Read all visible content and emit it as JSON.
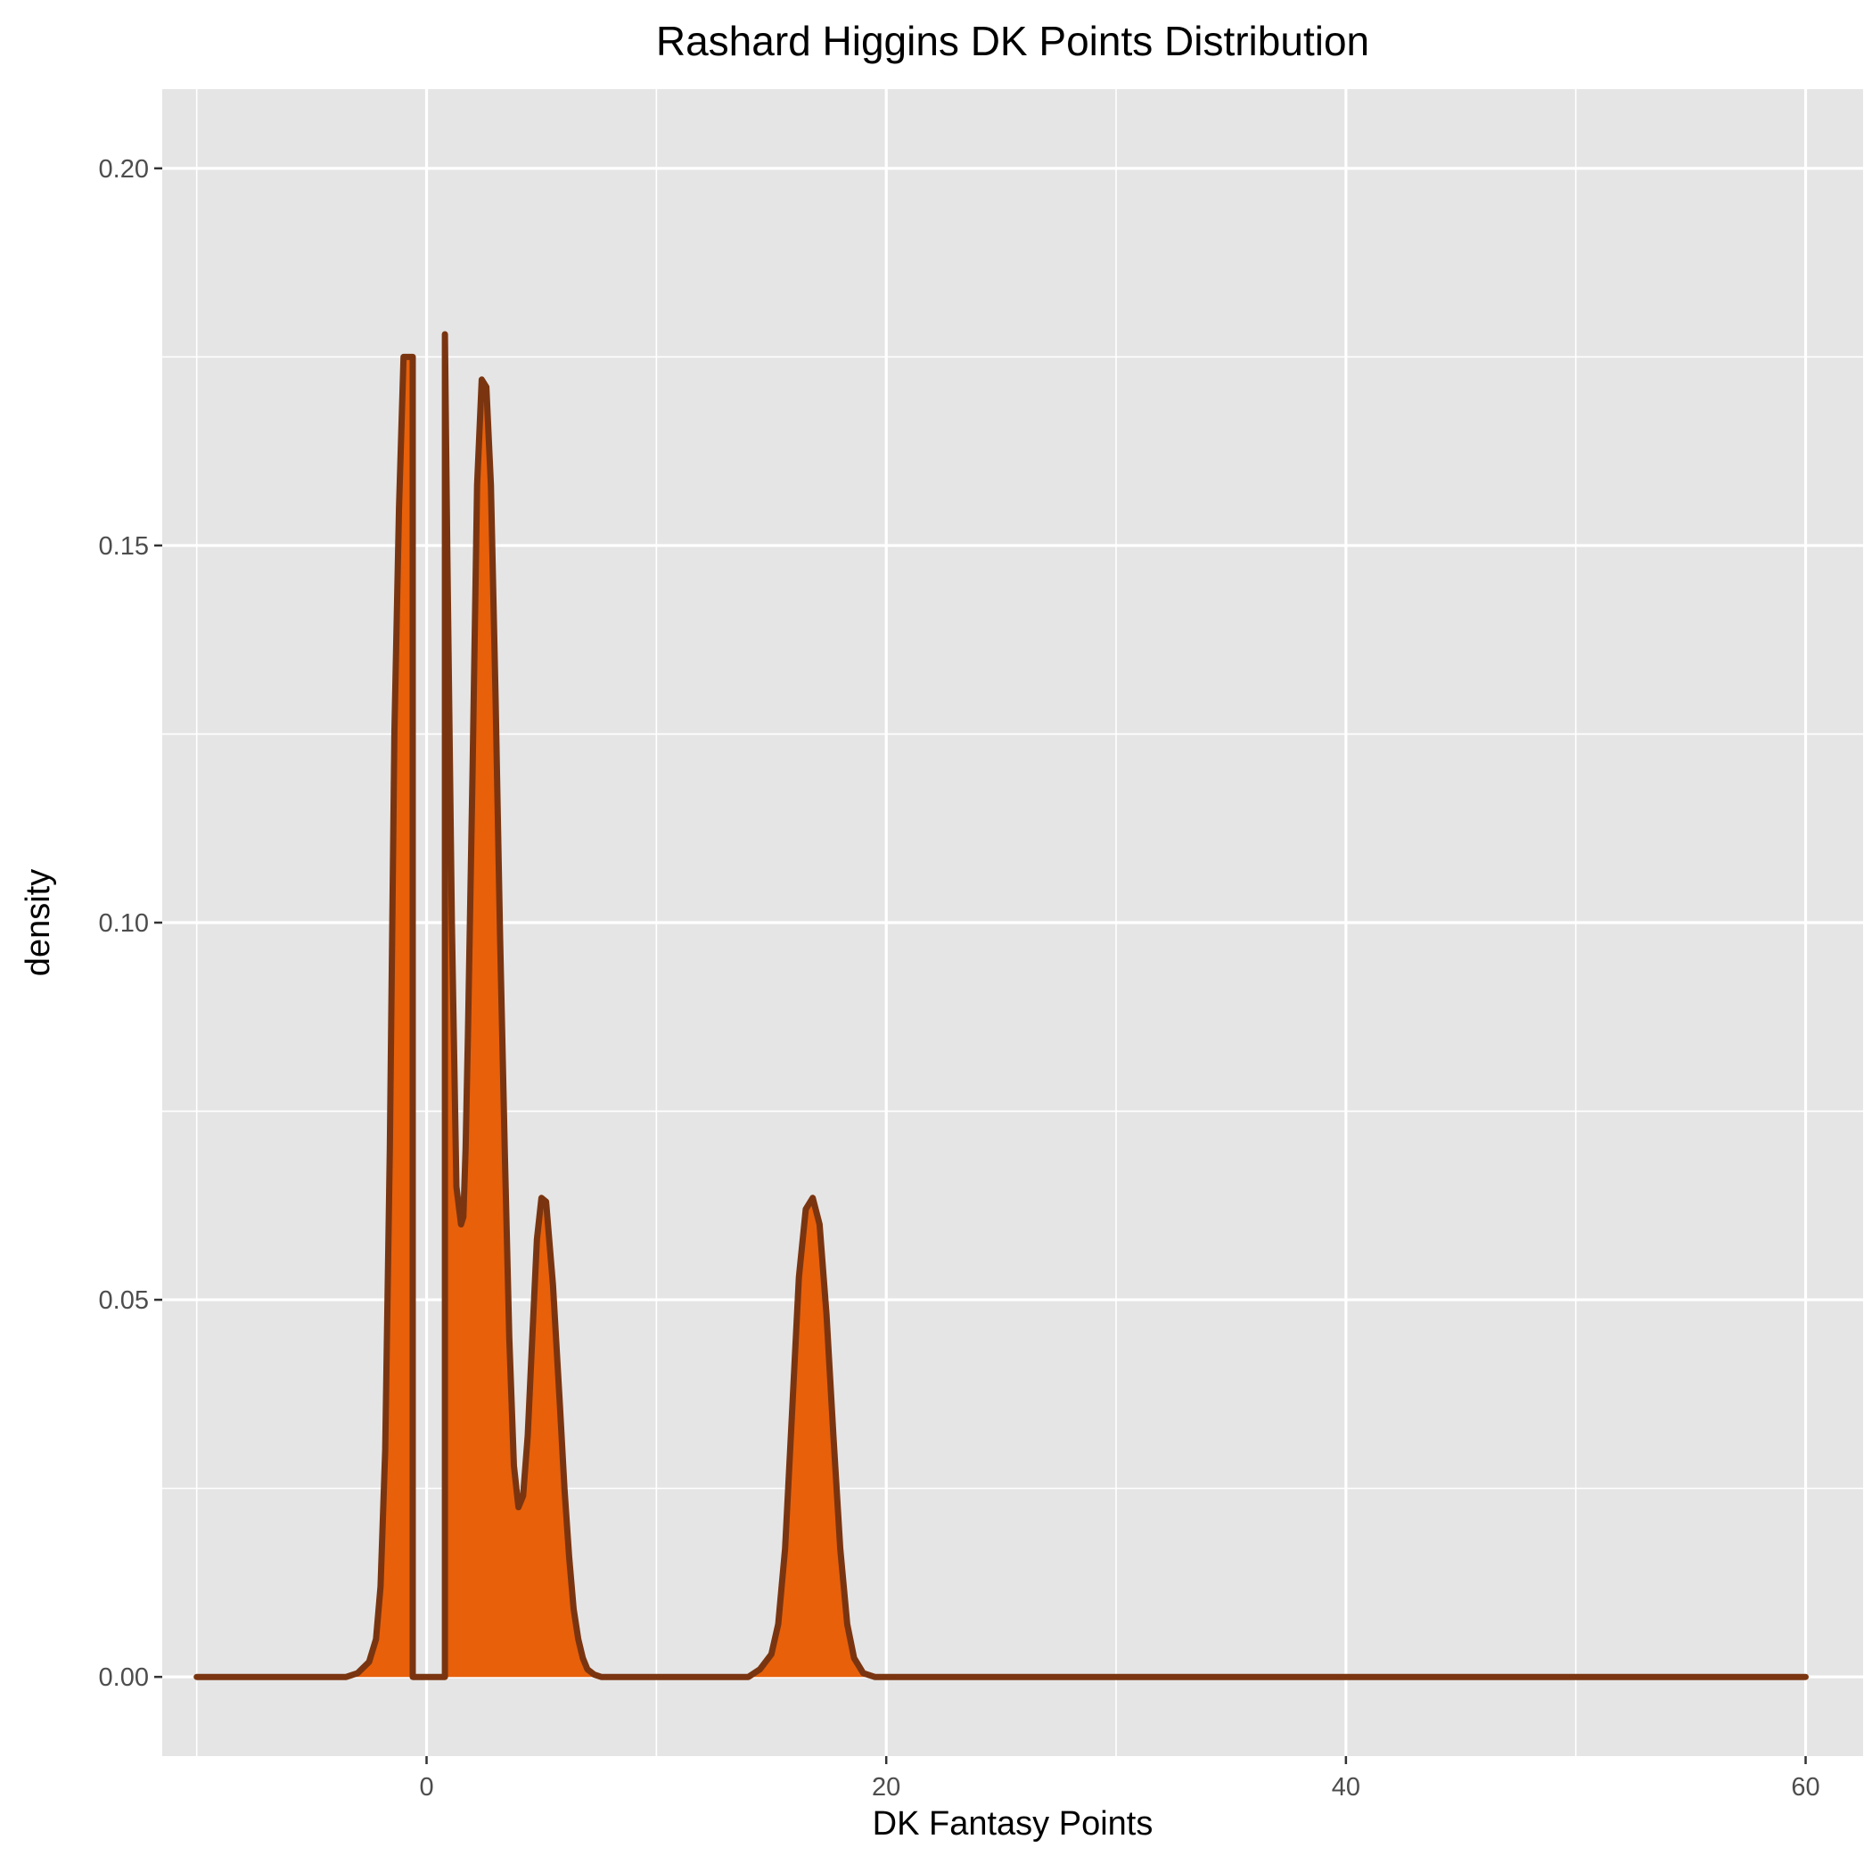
{
  "chart_data": {
    "type": "area",
    "title": "Rashard Higgins DK Points Distribution",
    "xlabel": "DK Fantasy Points",
    "ylabel": "density",
    "xlim": [
      -11.5,
      62.5
    ],
    "ylim": [
      -0.0105,
      0.2105
    ],
    "x_ticks": [
      0,
      20,
      40,
      60
    ],
    "x_tick_labels": [
      "0",
      "20",
      "40",
      "60"
    ],
    "y_ticks": [
      0,
      0.05,
      0.1,
      0.15,
      0.2
    ],
    "y_tick_labels": [
      "0.00",
      "0.05",
      "0.10",
      "0.15",
      "0.20"
    ],
    "grid": true,
    "legend": "none",
    "colors": {
      "panel": "#e5e5e5",
      "grid": "#ffffff",
      "fill": "#e8600a",
      "line": "#7a3510"
    },
    "series": [
      {
        "x": [
          -10,
          -5,
          -3.5,
          -3.0,
          -2.5,
          -2.2,
          -2.0,
          -1.8,
          -1.6,
          -1.4,
          -1.2,
          -1.0,
          -0.6,
          -0.6,
          0.8,
          0.8,
          0.9,
          1.1,
          1.3,
          1.5,
          1.6,
          1.7,
          1.8,
          2.0,
          2.2,
          2.4,
          2.6,
          2.8,
          3.0,
          3.2,
          3.4,
          3.6,
          3.8,
          4.0,
          4.2,
          4.4,
          4.6,
          4.8,
          5.0,
          5.2,
          5.5,
          5.8,
          6.0,
          6.2,
          6.4,
          6.6,
          6.8,
          7.0,
          7.3,
          7.6,
          8.0,
          10,
          13,
          14.0,
          14.5,
          15.0,
          15.3,
          15.6,
          15.9,
          16.2,
          16.5,
          16.8,
          17.1,
          17.4,
          17.7,
          18.0,
          18.3,
          18.6,
          19.0,
          19.5,
          25,
          40,
          60
        ],
        "y": [
          0,
          0,
          0,
          0.0005,
          0.002,
          0.005,
          0.012,
          0.03,
          0.07,
          0.125,
          0.155,
          0.175,
          0.175,
          0,
          0,
          0.178,
          0.15,
          0.1,
          0.065,
          0.06,
          0.061,
          0.07,
          0.085,
          0.12,
          0.158,
          0.172,
          0.171,
          0.158,
          0.13,
          0.098,
          0.07,
          0.045,
          0.028,
          0.0225,
          0.024,
          0.032,
          0.045,
          0.058,
          0.0635,
          0.063,
          0.052,
          0.036,
          0.025,
          0.016,
          0.009,
          0.005,
          0.0025,
          0.001,
          0.0003,
          0,
          0,
          0,
          0,
          0,
          0.001,
          0.003,
          0.007,
          0.017,
          0.035,
          0.053,
          0.062,
          0.0635,
          0.06,
          0.048,
          0.032,
          0.017,
          0.007,
          0.0025,
          0.0005,
          0,
          0,
          0,
          0
        ]
      }
    ]
  }
}
